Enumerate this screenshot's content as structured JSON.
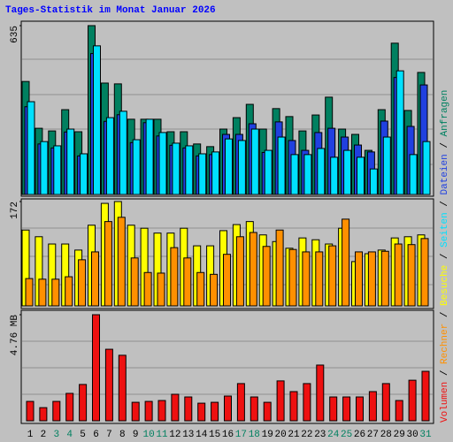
{
  "chart_data": [
    {
      "type": "bar",
      "title": "Tages-Statistik im Monat Januar 2026",
      "legend_separator": " / ",
      "ylim": [
        0,
        635
      ],
      "yticks": [
        635
      ],
      "series": [
        {
          "name": "Anfragen",
          "color": "#008060",
          "values": [
            425,
            249,
            239,
            319,
            236,
            635,
            419,
            416,
            283,
            283,
            283,
            236,
            236,
            190,
            180,
            246,
            289,
            339,
            246,
            323,
            293,
            239,
            299,
            366,
            246,
            226,
            166,
            319,
            569,
            316,
            459
          ]
        },
        {
          "name": "Dateien",
          "color": "#2040e0",
          "values": [
            330,
            190,
            175,
            235,
            145,
            530,
            275,
            300,
            195,
            270,
            220,
            185,
            175,
            145,
            150,
            226,
            226,
            266,
            158,
            273,
            203,
            166,
            233,
            249,
            216,
            186,
            160,
            276,
            440,
            256,
            412
          ]
        },
        {
          "name": "Seiten",
          "color": "#00e0ff",
          "values": [
            349,
            199,
            183,
            246,
            153,
            559,
            289,
            313,
            206,
            283,
            233,
            193,
            183,
            153,
            160,
            209,
            203,
            246,
            166,
            216,
            150,
            150,
            173,
            140,
            166,
            140,
            96,
            216,
            465,
            150,
            199
          ]
        }
      ]
    },
    {
      "type": "bar",
      "ylim": [
        0,
        172
      ],
      "yticks": [
        172
      ],
      "series": [
        {
          "name": "Besuche",
          "color": "#ffff00",
          "values": [
            125,
            114,
            102,
            102,
            92,
            133,
            169,
            172,
            133,
            128,
            120,
            120,
            128,
            99,
            99,
            124,
            134,
            139,
            117,
            106,
            95,
            112,
            109,
            102,
            128,
            73,
            86,
            92,
            112,
            114,
            117
          ]
        },
        {
          "name": "Rechner",
          "color": "#ff9000",
          "values": [
            45,
            44,
            44,
            48,
            76,
            89,
            139,
            146,
            79,
            55,
            54,
            96,
            79,
            55,
            52,
            85,
            114,
            121,
            98,
            125,
            93,
            89,
            89,
            99,
            143,
            89,
            89,
            90,
            102,
            101,
            111
          ]
        }
      ]
    },
    {
      "type": "bar",
      "ylim": [
        0,
        4.76
      ],
      "yticks": [
        {
          "value": 4.76,
          "label": "4.76 MB"
        }
      ],
      "categories": [
        "1",
        "2",
        "3",
        "4",
        "5",
        "6",
        "7",
        "8",
        "9",
        "10",
        "11",
        "12",
        "13",
        "14",
        "15",
        "16",
        "17",
        "18",
        "19",
        "20",
        "21",
        "22",
        "23",
        "24",
        "25",
        "26",
        "27",
        "28",
        "29",
        "30",
        "31"
      ],
      "label_colors": [
        "#000000",
        "#000000",
        "#008060",
        "#008060",
        "#000000",
        "#000000",
        "#000000",
        "#000000",
        "#000000",
        "#008060",
        "#008060",
        "#000000",
        "#000000",
        "#000000",
        "#000000",
        "#000000",
        "#008060",
        "#008060",
        "#000000",
        "#000000",
        "#000000",
        "#000000",
        "#000000",
        "#008060",
        "#008060",
        "#000000",
        "#000000",
        "#000000",
        "#000000",
        "#000000",
        "#008060"
      ],
      "series": [
        {
          "name": "Volumen",
          "color": "#ee1010",
          "values": [
            0.87,
            0.59,
            0.87,
            1.23,
            1.63,
            4.76,
            3.21,
            2.94,
            0.83,
            0.87,
            0.91,
            1.19,
            1.07,
            0.79,
            0.83,
            1.11,
            1.67,
            1.07,
            0.83,
            1.79,
            1.31,
            1.67,
            2.5,
            1.07,
            1.07,
            1.07,
            1.31,
            1.67,
            0.91,
            1.82,
            2.22
          ]
        }
      ]
    }
  ]
}
